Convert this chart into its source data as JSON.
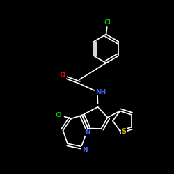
{
  "background_color": "#000000",
  "bond_color": "#ffffff",
  "atom_colors": {
    "Cl": "#00cc00",
    "O": "#ff0000",
    "N": "#4466ff",
    "NH": "#4466ff",
    "S": "#ccaa00"
  }
}
